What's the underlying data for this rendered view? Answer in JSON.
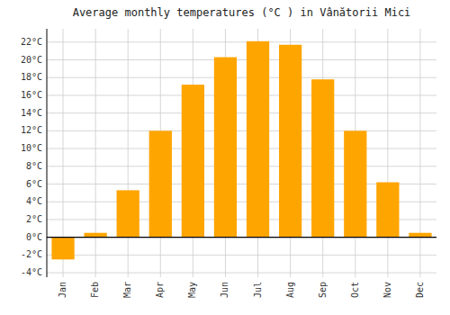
{
  "chart_data": {
    "type": "bar",
    "title": "Average monthly temperatures (°C ) in Vânătorii Mici",
    "categories": [
      "Jan",
      "Feb",
      "Mar",
      "Apr",
      "May",
      "Jun",
      "Jul",
      "Aug",
      "Sep",
      "Oct",
      "Nov",
      "Dec"
    ],
    "values": [
      -2.5,
      0.5,
      5.3,
      12.0,
      17.2,
      20.3,
      22.1,
      21.7,
      17.8,
      12.0,
      6.2,
      0.5
    ],
    "color": "#FFA500",
    "ylim": [
      -4.5,
      23.5
    ],
    "yticks": [
      {
        "value": -4,
        "label": "-4°C"
      },
      {
        "value": -2,
        "label": "-2°C"
      },
      {
        "value": 0,
        "label": "0°C"
      },
      {
        "value": 2,
        "label": "2°C"
      },
      {
        "value": 4,
        "label": "4°C"
      },
      {
        "value": 6,
        "label": "6°C"
      },
      {
        "value": 8,
        "label": "8°C"
      },
      {
        "value": 10,
        "label": "10°C"
      },
      {
        "value": 12,
        "label": "12°C"
      },
      {
        "value": 14,
        "label": "14°C"
      },
      {
        "value": 16,
        "label": "16°C"
      },
      {
        "value": 18,
        "label": "18°C"
      },
      {
        "value": 20,
        "label": "20°C"
      },
      {
        "value": 22,
        "label": "22°C"
      }
    ],
    "grid": true
  }
}
